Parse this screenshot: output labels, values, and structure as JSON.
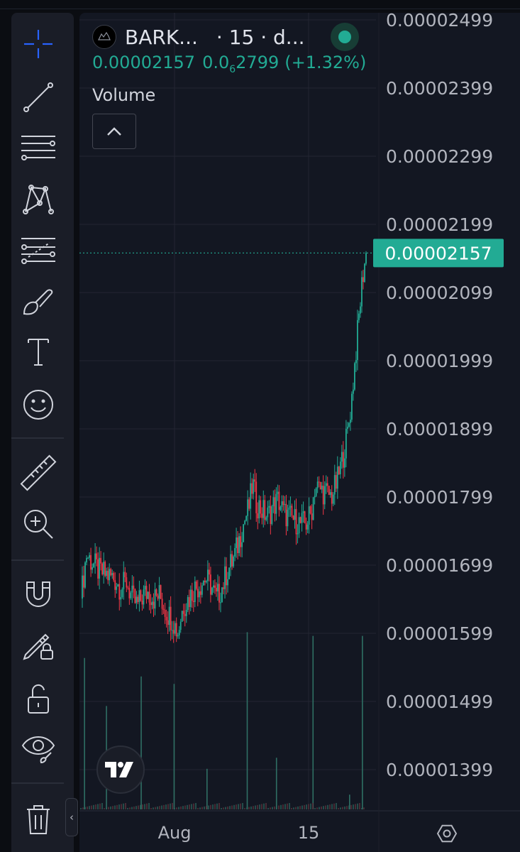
{
  "legend": {
    "symbol": "BARK...",
    "interval": "· 15 · d...",
    "last_price": "0.00002157",
    "change_prefix": "0.0",
    "change_zero_count": "6",
    "change_digits": "2799",
    "change_pct": "(+1.32%)",
    "volume_label": "Volume"
  },
  "colors": {
    "up": "#22ab94",
    "down": "#f23645",
    "pane_bg": "#131722",
    "grid": "#232632",
    "axis_text": "#b2b5be",
    "price_tag_bg": "#22ab94"
  },
  "icons": {
    "toolbar": [
      "crosshair-icon",
      "trend-line-icon",
      "horizontal-lines-icon",
      "pattern-icon",
      "fib-retracement-icon",
      "brush-icon",
      "text-icon",
      "emoji-icon",
      "ruler-icon",
      "zoom-in-icon",
      "magnet-icon",
      "lock-drawing-icon",
      "unlock-icon",
      "eye-icon",
      "trash-icon"
    ],
    "collapse": "chevron-up-icon",
    "collapse_toolbar": "chevron-left-icon",
    "settings": "gear-icon",
    "logo": "tradingview-logo"
  },
  "chart_data": {
    "type": "candlestick",
    "title": "",
    "xlabel": "",
    "ylabel": "",
    "y_axis_labels": [
      "0.00002499",
      "0.00002399",
      "0.00002299",
      "0.00002199",
      "0.00002099",
      "0.00001999",
      "0.00001899",
      "0.00001799",
      "0.00001699",
      "0.00001599",
      "0.00001499",
      "0.00001399"
    ],
    "ylim": [
      1.36e-05,
      2.52e-05
    ],
    "x_axis_labels": [
      "Aug",
      "15"
    ],
    "last_price_tag": "0.00002157",
    "last_price_value": 2.157e-05,
    "close_path": [
      [
        0,
        1.65e-05
      ],
      [
        3,
        1.715e-05
      ],
      [
        7,
        1.7e-05
      ],
      [
        10,
        1.69e-05
      ],
      [
        14,
        1.685e-05
      ],
      [
        18,
        1.68e-05
      ],
      [
        22,
        1.665e-05
      ],
      [
        25,
        1.675e-05
      ],
      [
        28,
        1.65e-05
      ],
      [
        31,
        1.64e-05
      ],
      [
        34,
        1.655e-05
      ],
      [
        37,
        1.66e-05
      ],
      [
        40,
        1.65e-05
      ],
      [
        43,
        1.655e-05
      ],
      [
        47,
        1.63e-05
      ],
      [
        50,
        1.62e-05
      ],
      [
        53,
        1.6e-05
      ],
      [
        56,
        1.64e-05
      ],
      [
        59,
        1.65e-05
      ],
      [
        62,
        1.665e-05
      ],
      [
        65,
        1.67e-05
      ],
      [
        68,
        1.68e-05
      ],
      [
        71,
        1.67e-05
      ],
      [
        74,
        1.65e-05
      ],
      [
        77,
        1.665e-05
      ],
      [
        80,
        1.69e-05
      ],
      [
        83,
        1.705e-05
      ],
      [
        86,
        1.73e-05
      ],
      [
        89,
        1.76e-05
      ],
      [
        92,
        1.785e-05
      ],
      [
        94,
        1.82e-05
      ],
      [
        96,
        1.79e-05
      ],
      [
        99,
        1.78e-05
      ],
      [
        102,
        1.77e-05
      ],
      [
        105,
        1.785e-05
      ],
      [
        108,
        1.795e-05
      ],
      [
        111,
        1.775e-05
      ],
      [
        114,
        1.77e-05
      ],
      [
        117,
        1.765e-05
      ],
      [
        120,
        1.76e-05
      ],
      [
        123,
        1.76e-05
      ],
      [
        126,
        1.775e-05
      ],
      [
        128,
        1.815e-05
      ],
      [
        131,
        1.81e-05
      ],
      [
        134,
        1.805e-05
      ],
      [
        137,
        1.8e-05
      ],
      [
        140,
        1.82e-05
      ],
      [
        143,
        1.855e-05
      ],
      [
        146,
        1.895e-05
      ],
      [
        148,
        1.94e-05
      ],
      [
        150,
        2e-05
      ],
      [
        152,
        2.06e-05
      ],
      [
        154,
        2.12e-05
      ],
      [
        156,
        2.157e-05
      ]
    ],
    "volume": [
      {
        "x": 2,
        "v": 0.41
      },
      {
        "x": 14,
        "v": 0.28
      },
      {
        "x": 33,
        "v": 0.36
      },
      {
        "x": 51,
        "v": 0.34
      },
      {
        "x": 69,
        "v": 0.11
      },
      {
        "x": 91,
        "v": 0.48
      },
      {
        "x": 107,
        "v": 0.14
      },
      {
        "x": 127,
        "v": 0.47
      },
      {
        "x": 147,
        "v": 0.04
      },
      {
        "x": 154,
        "v": 0.47
      }
    ],
    "grid": true
  }
}
